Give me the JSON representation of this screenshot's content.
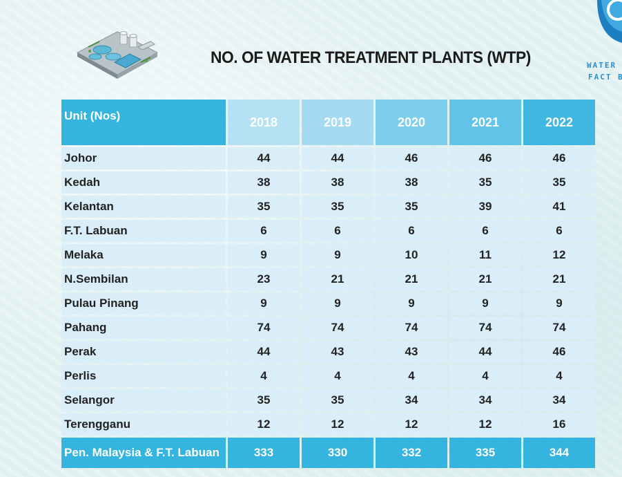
{
  "header": {
    "title": "NO. OF WATER TREATMENT PLANTS (WTP)",
    "logo_line1": "WATER F",
    "logo_line2": "FACT B"
  },
  "table": {
    "unit_label": "Unit (Nos)",
    "years": [
      "2018",
      "2019",
      "2020",
      "2021",
      "2022"
    ],
    "rows": [
      {
        "state": "Johor",
        "values": [
          "44",
          "44",
          "46",
          "46",
          "46"
        ]
      },
      {
        "state": "Kedah",
        "values": [
          "38",
          "38",
          "38",
          "35",
          "35"
        ]
      },
      {
        "state": "Kelantan",
        "values": [
          "35",
          "35",
          "35",
          "39",
          "41"
        ]
      },
      {
        "state": "F.T. Labuan",
        "values": [
          "6",
          "6",
          "6",
          "6",
          "6"
        ]
      },
      {
        "state": "Melaka",
        "values": [
          "9",
          "9",
          "10",
          "11",
          "12"
        ]
      },
      {
        "state": "N.Sembilan",
        "values": [
          "23",
          "21",
          "21",
          "21",
          "21"
        ]
      },
      {
        "state": "Pulau Pinang",
        "values": [
          "9",
          "9",
          "9",
          "9",
          "9"
        ]
      },
      {
        "state": "Pahang",
        "values": [
          "74",
          "74",
          "74",
          "74",
          "74"
        ]
      },
      {
        "state": "Perak",
        "values": [
          "44",
          "43",
          "43",
          "44",
          "46"
        ]
      },
      {
        "state": "Perlis",
        "values": [
          "4",
          "4",
          "4",
          "4",
          "4"
        ]
      },
      {
        "state": "Selangor",
        "values": [
          "35",
          "35",
          "34",
          "34",
          "34"
        ]
      },
      {
        "state": "Terengganu",
        "values": [
          "12",
          "12",
          "12",
          "12",
          "16"
        ]
      }
    ],
    "total": {
      "state": "Pen. Malaysia & F.T. Labuan",
      "values": [
        "333",
        "330",
        "332",
        "335",
        "344"
      ]
    }
  },
  "colors": {
    "header_blue": "#35b4df",
    "cell_light": "#d9eef8",
    "logo_blue": "#2a8fd0"
  }
}
